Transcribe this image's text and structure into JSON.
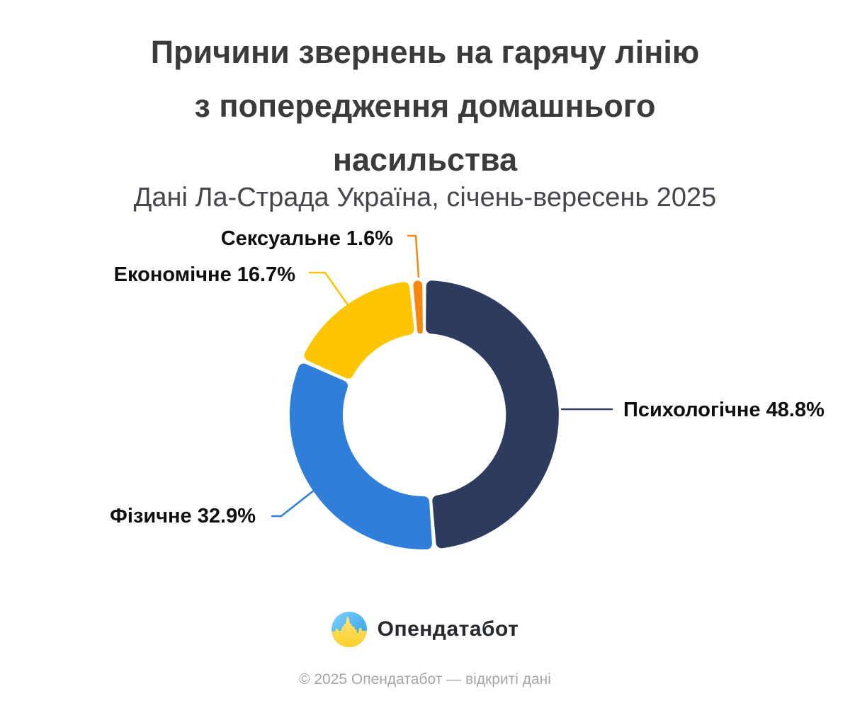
{
  "header": {
    "title_lines": [
      "Причини звернень на гарячу лінію",
      "з попередження домашнього",
      "насильства"
    ],
    "subtitle": "Дані Ла-Страда Україна, січень-вересень 2025"
  },
  "chart_data": {
    "type": "pie",
    "variant": "donut",
    "title": "Причини звернень на гарячу лінію з попередження домашнього насильства",
    "subtitle": "Дані Ла-Страда Україна, січень-вересень 2025",
    "unit": "%",
    "direction": "clockwise",
    "start_angle_deg": 0,
    "inner_radius_ratio": 0.6,
    "legend_position": "callout-labels",
    "segments": [
      {
        "label": "Психологічне",
        "value": 48.8,
        "value_label": "48.8%",
        "color": "#2d3c5e"
      },
      {
        "label": "Фізичне",
        "value": 32.9,
        "value_label": "32.9%",
        "color": "#2f7ed9"
      },
      {
        "label": "Економічне",
        "value": 16.7,
        "value_label": "16.7%",
        "color": "#fdc402"
      },
      {
        "label": "Сексуальне",
        "value": 1.6,
        "value_label": "1.6%",
        "color": "#f8870e"
      }
    ]
  },
  "branding": {
    "logo_text": "Опендатабот",
    "logo_icon": "opendatabot-circle-icon",
    "footer": "© 2025 Опендатабот — відкриті дані"
  }
}
